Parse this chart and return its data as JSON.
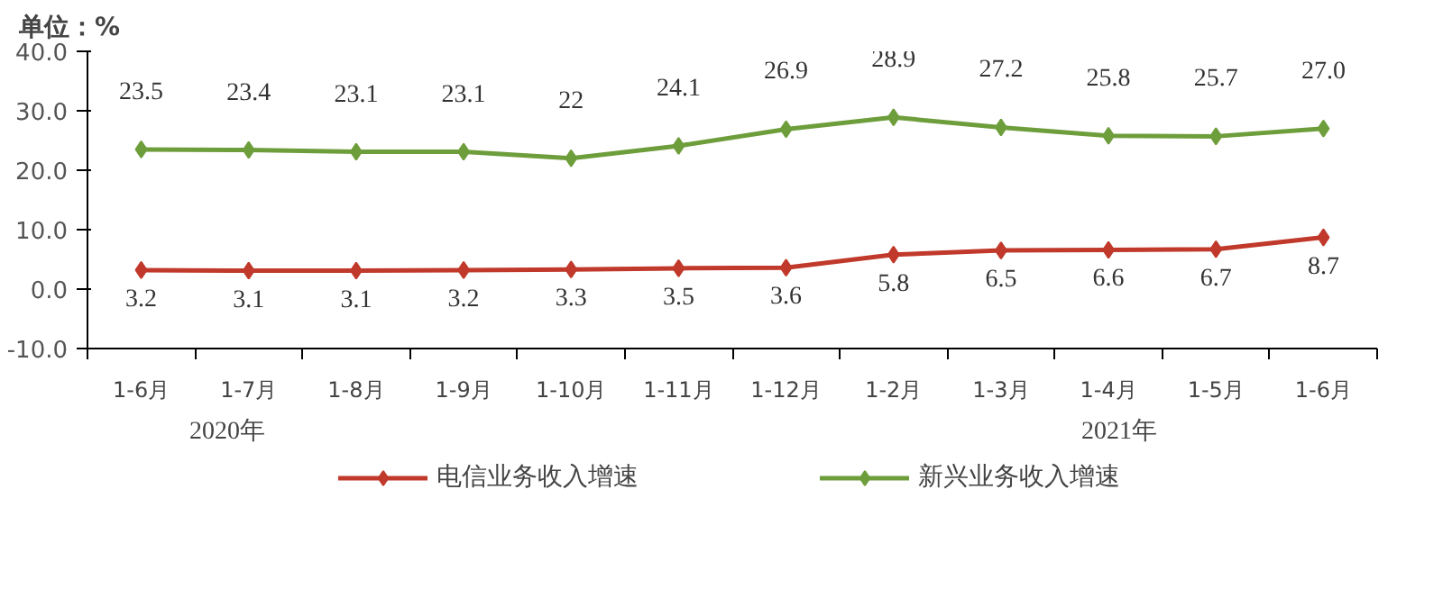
{
  "chart_data": {
    "type": "line",
    "ylabel": "单位：%",
    "categories": [
      "1-6月",
      "1-7月",
      "1-8月",
      "1-9月",
      "1-10月",
      "1-11月",
      "1-12月",
      "1-2月",
      "1-3月",
      "1-4月",
      "1-5月",
      "1-6月"
    ],
    "series": [
      {
        "name": "电信业务收入增速",
        "color": "#c0392b",
        "values": [
          3.2,
          3.1,
          3.1,
          3.2,
          3.3,
          3.5,
          3.6,
          5.8,
          6.5,
          6.6,
          6.7,
          8.7
        ],
        "value_labels": [
          "3.2",
          "3.1",
          "3.1",
          "3.2",
          "3.3",
          "3.5",
          "3.6",
          "5.8",
          "6.5",
          "6.6",
          "6.7",
          "8.7"
        ]
      },
      {
        "name": "新兴业务收入增速",
        "color": "#6e9e3c",
        "values": [
          23.5,
          23.4,
          23.1,
          23.1,
          22,
          24.1,
          26.9,
          28.9,
          27.2,
          25.8,
          25.7,
          27.0
        ],
        "value_labels": [
          "23.5",
          "23.4",
          "23.1",
          "23.1",
          "22",
          "24.1",
          "26.9",
          "28.9",
          "27.2",
          "25.8",
          "25.7",
          "27.0"
        ]
      }
    ],
    "ylim": [
      -10,
      40
    ],
    "yticks": [
      {
        "value": -10,
        "label": "-10.0"
      },
      {
        "value": 0,
        "label": "0.0"
      },
      {
        "value": 10,
        "label": "10.0"
      },
      {
        "value": 20,
        "label": "20.0"
      },
      {
        "value": 30,
        "label": "30.0"
      },
      {
        "value": 40,
        "label": "40.0"
      }
    ],
    "annotations": [
      "2020年",
      "2021年"
    ],
    "marker": "diamond",
    "line_style": "solid",
    "grid": false,
    "legend": "bottom"
  }
}
